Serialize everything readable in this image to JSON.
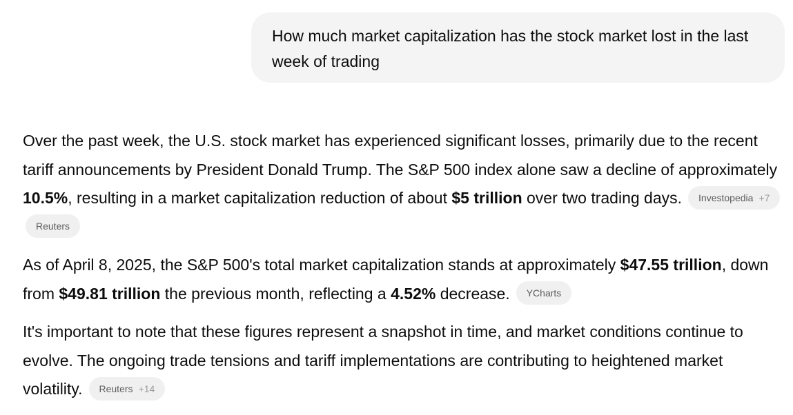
{
  "user_message": {
    "text": "How much market capitalization has the stock market lost in the last week of trading"
  },
  "answer": {
    "p1": {
      "t1": "Over the past week, the U.S. stock market has experienced significant losses, primarily due to the recent tariff announcements by President Donald Trump. The S&P 500 index alone saw a decline of approximately ",
      "b1": "10.5%",
      "t2": ", resulting in a market capitalization reduction of about ",
      "b2": "$5 trillion",
      "t3": " over two trading days.",
      "citations": [
        {
          "label": "Investopedia",
          "count": "+7"
        },
        {
          "label": "Reuters"
        }
      ]
    },
    "p2": {
      "t1": "As of April 8, 2025, the S&P 500's total market capitalization stands at approximately ",
      "b1": "$47.55 trillion",
      "t2": ", down from ",
      "b2": "$49.81 trillion",
      "t3": " the previous month, reflecting a ",
      "b3": "4.52%",
      "t4": " decrease.",
      "citations": [
        {
          "label": "YCharts"
        }
      ]
    },
    "p3": {
      "t1": "It's important to note that these figures represent a snapshot in time, and market conditions continue to evolve. The ongoing trade tensions and tariff implementations are contributing to heightened market volatility.",
      "citations": [
        {
          "label": "Reuters",
          "count": "+14"
        }
      ]
    }
  }
}
